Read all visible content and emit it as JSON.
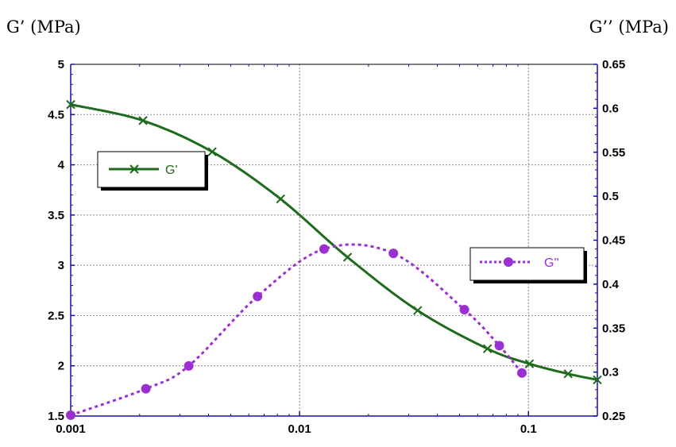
{
  "chart_data": {
    "type": "line",
    "x_scale": "log",
    "xlim": [
      0.001,
      0.2
    ],
    "x_ticks": [
      "0.001",
      "0.01",
      "0.1"
    ],
    "y_left": {
      "label": "G’ (MPa)",
      "ylim": [
        1.5,
        5
      ],
      "ticks": [
        "1.5",
        "2",
        "2.5",
        "3",
        "3.5",
        "4",
        "4.5",
        "5"
      ]
    },
    "y_right": {
      "label": "G’’ (MPa)",
      "ylim": [
        0.25,
        0.65
      ],
      "ticks": [
        "0.25",
        "0.3",
        "0.35",
        "0.4",
        "0.45",
        "0.5",
        "0.55",
        "0.6",
        "0.65"
      ]
    },
    "grid": true,
    "series": [
      {
        "name": "G'",
        "axis": "left",
        "color": "#1e6b1e",
        "line_style": "solid",
        "marker": "x",
        "x": [
          0.001,
          0.00207,
          0.00415,
          0.00826,
          0.0162,
          0.0328,
          0.0662,
          0.101,
          0.149,
          0.2
        ],
        "y": [
          4.6,
          4.44,
          4.13,
          3.66,
          3.08,
          2.55,
          2.17,
          2.02,
          1.92,
          1.86
        ]
      },
      {
        "name": "G\"",
        "axis": "right",
        "color": "#9b30d0",
        "line_style": "dotted",
        "marker": "circle",
        "x": [
          0.001,
          0.00213,
          0.00328,
          0.00655,
          0.0128,
          0.0257,
          0.0525,
          0.0746,
          0.0936
        ],
        "y": [
          0.251,
          0.281,
          0.307,
          0.386,
          0.44,
          0.435,
          0.371,
          0.33,
          0.299
        ]
      }
    ],
    "legend": [
      {
        "label": "G'",
        "series": 0,
        "position": "upper-left"
      },
      {
        "label": "G''",
        "series": 1,
        "position": "middle-right"
      }
    ]
  }
}
